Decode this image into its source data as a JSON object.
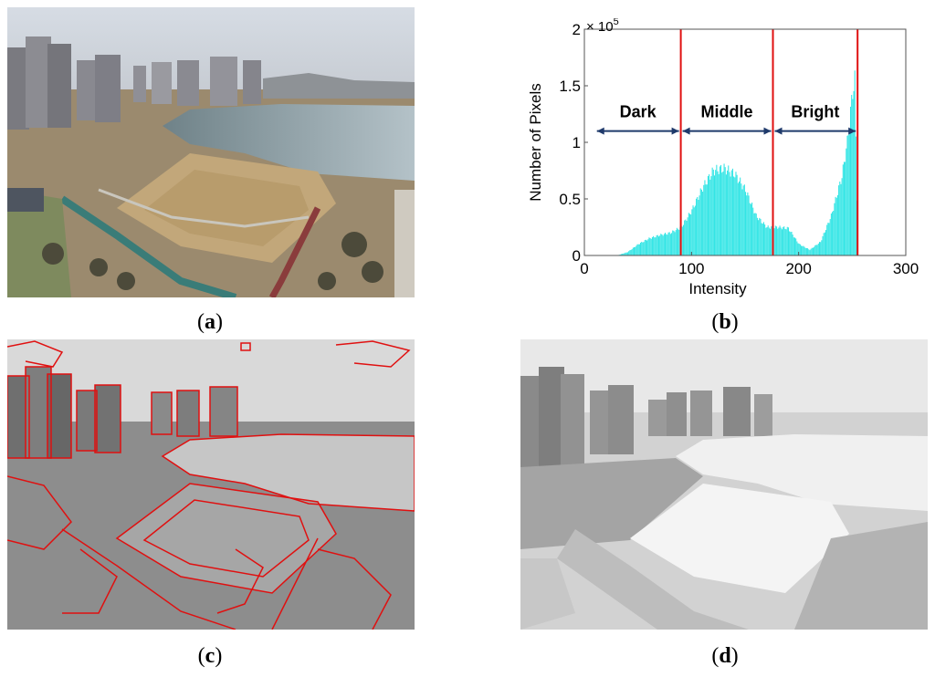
{
  "captions": {
    "a": {
      "open": "(",
      "letter": "a",
      "close": ")"
    },
    "b": {
      "open": "(",
      "letter": "b",
      "close": ")"
    },
    "c": {
      "open": "(",
      "letter": "c",
      "close": ")"
    },
    "d": {
      "open": "(",
      "letter": "d",
      "close": ")"
    }
  },
  "chart_data": {
    "type": "bar",
    "xlabel": "Intensity",
    "ylabel": "Number of Pixels",
    "y_multiplier": "× 10",
    "y_multiplier_exp": "5",
    "xlim": [
      0,
      300
    ],
    "ylim": [
      0,
      2
    ],
    "xticks": [
      "0",
      "100",
      "200",
      "300"
    ],
    "yticks": [
      "0",
      "0.5",
      "1",
      "1.5",
      "2"
    ],
    "grid": false,
    "bar_color": "#33e5e5",
    "threshold_color": "#e01010",
    "arrow_color": "#1f3a6b",
    "thresholds": [
      90,
      176,
      255
    ],
    "regions": [
      {
        "label": "Dark",
        "from": 10,
        "to": 90
      },
      {
        "label": "Middle",
        "from": 90,
        "to": 176
      },
      {
        "label": "Bright",
        "from": 176,
        "to": 255
      }
    ],
    "histogram": {
      "x": [
        30,
        40,
        50,
        60,
        70,
        80,
        90,
        100,
        110,
        120,
        130,
        140,
        150,
        160,
        170,
        180,
        190,
        200,
        210,
        220,
        230,
        240,
        245,
        250,
        252,
        255
      ],
      "y": [
        0,
        0.03,
        0.1,
        0.15,
        0.18,
        0.2,
        0.25,
        0.4,
        0.6,
        0.75,
        0.77,
        0.72,
        0.58,
        0.35,
        0.25,
        0.25,
        0.24,
        0.1,
        0.05,
        0.12,
        0.35,
        0.7,
        1.0,
        1.45,
        1.55,
        0
      ]
    }
  }
}
